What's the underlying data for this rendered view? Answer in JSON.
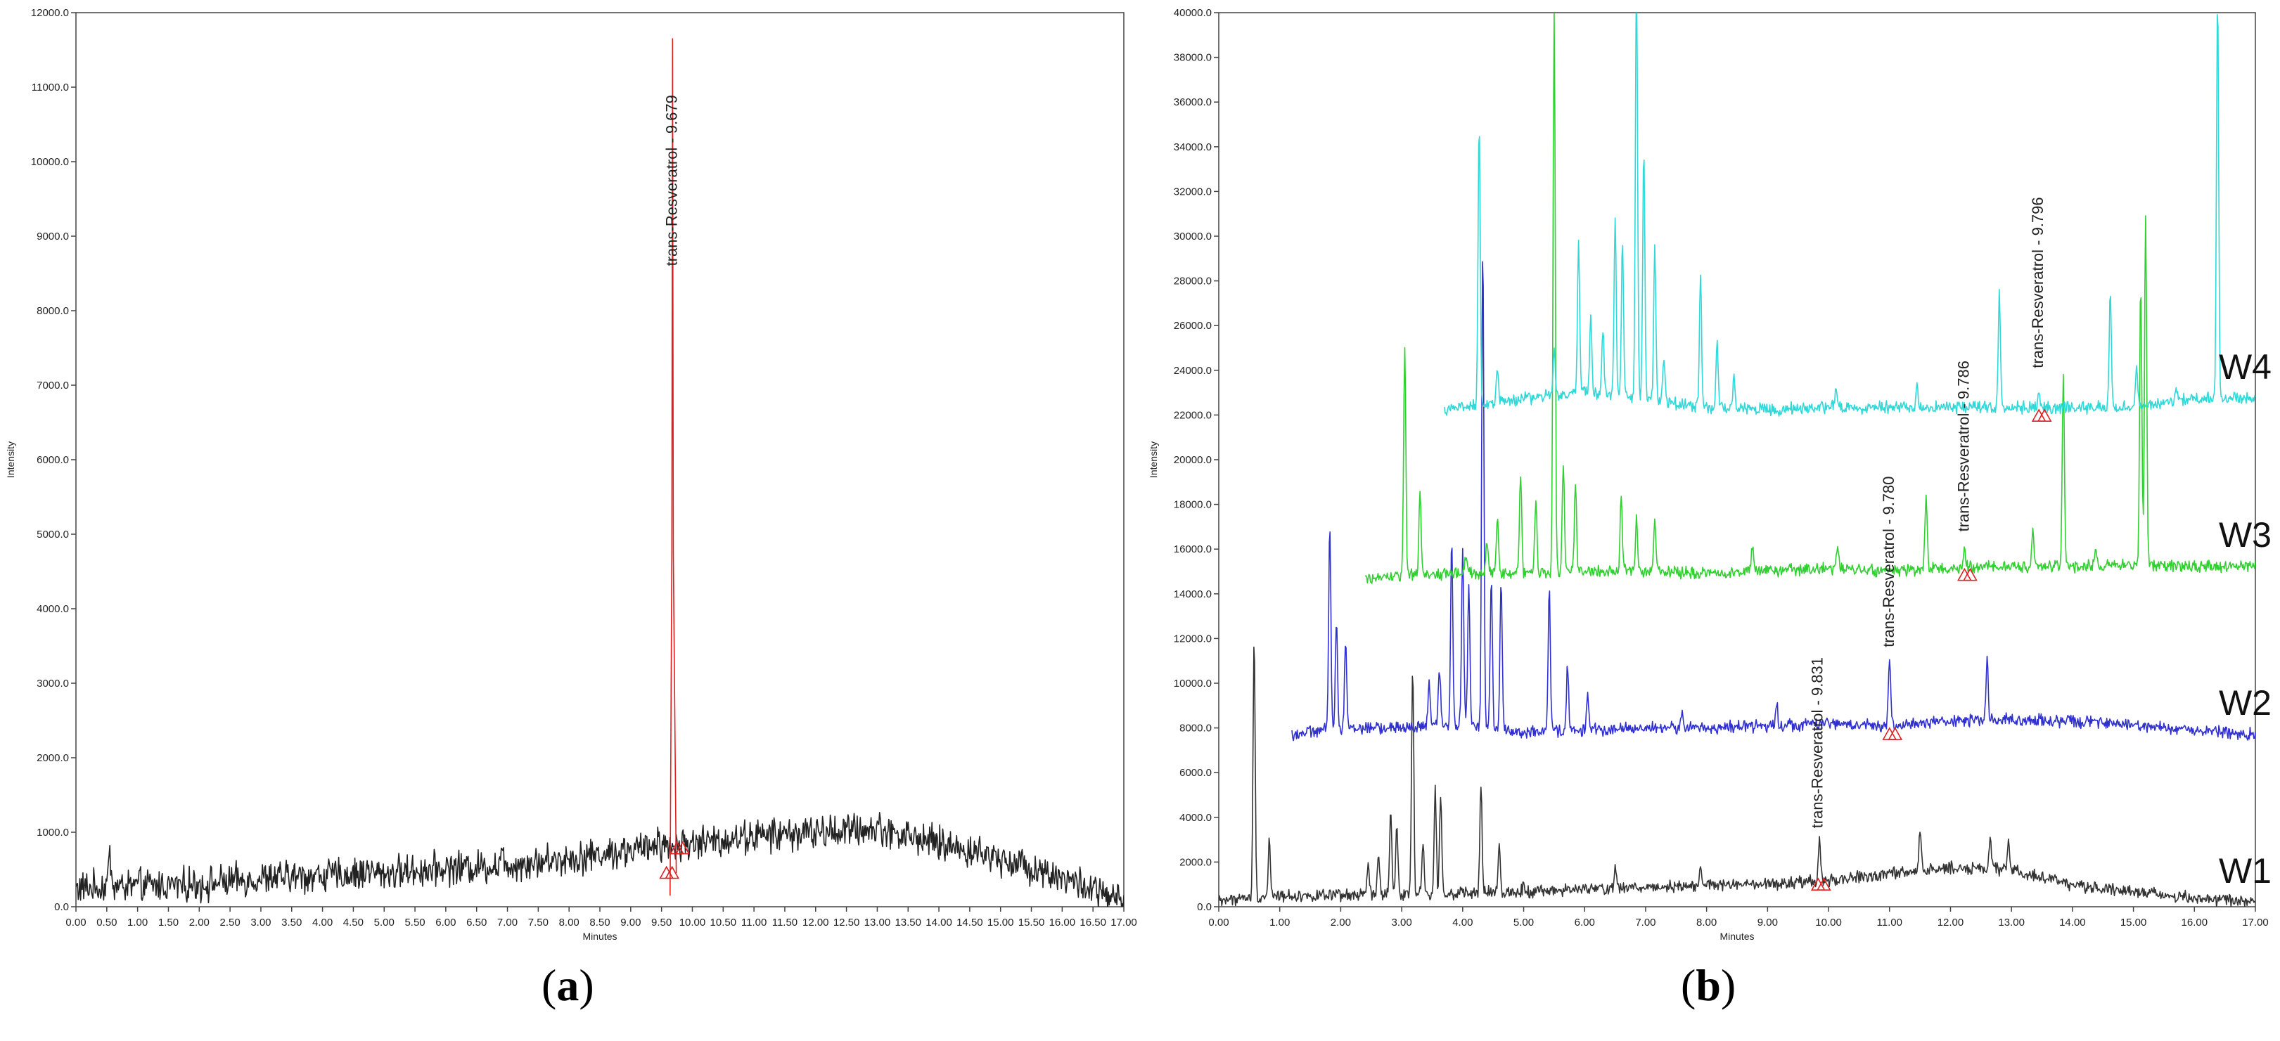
{
  "chart_data": [
    {
      "type": "line",
      "panel_label": "a",
      "xlabel": "Minutes",
      "ylabel": "Intensity",
      "xlim": [
        0,
        17
      ],
      "ylim": [
        0,
        12000
      ],
      "xticks": [
        "0.00",
        "0.50",
        "1.00",
        "1.50",
        "2.00",
        "2.50",
        "3.00",
        "3.50",
        "4.00",
        "4.50",
        "5.00",
        "5.50",
        "6.00",
        "6.50",
        "7.00",
        "7.50",
        "8.00",
        "8.50",
        "9.00",
        "9.50",
        "10.00",
        "10.50",
        "11.00",
        "11.50",
        "12.00",
        "12.50",
        "13.00",
        "13.50",
        "14.00",
        "14.50",
        "15.00",
        "15.50",
        "16.00",
        "16.50",
        "17.00"
      ],
      "yticks": [
        "0.0",
        "1000.0",
        "2000.0",
        "3000.0",
        "4000.0",
        "5000.0",
        "6000.0",
        "7000.0",
        "8000.0",
        "9000.0",
        "10000.0",
        "11000.0",
        "12000.0"
      ],
      "series": [
        {
          "color": "#222222",
          "baseline": [
            [
              0,
              250
            ],
            [
              1,
              280
            ],
            [
              2,
              300
            ],
            [
              3,
              380
            ],
            [
              4,
              420
            ],
            [
              5,
              450
            ],
            [
              6,
              520
            ],
            [
              7,
              560
            ],
            [
              8,
              650
            ],
            [
              9,
              760
            ],
            [
              10,
              850
            ],
            [
              11,
              950
            ],
            [
              12,
              1000
            ],
            [
              13,
              1050
            ],
            [
              14,
              850
            ],
            [
              15,
              650
            ],
            [
              16,
              400
            ],
            [
              17,
              50
            ]
          ],
          "peaks": [
            [
              0.55,
              400
            ],
            [
              4.75,
              120
            ],
            [
              6.9,
              150
            ],
            [
              9.45,
              200
            ]
          ]
        },
        {
          "color": "#e02020",
          "peaks": [
            [
              9.679,
              11500
            ]
          ]
        }
      ],
      "annotations": [
        {
          "text": "trans-Resveratrol - 9.679",
          "x": 9.679,
          "y": 8600
        }
      ],
      "markers": [
        [
          9.58,
          450
        ],
        [
          9.75,
          780
        ]
      ]
    },
    {
      "type": "line",
      "panel_label": "b",
      "xlabel": "Minutes",
      "ylabel": "Intensity",
      "xlim": [
        0,
        17
      ],
      "ylim": [
        0,
        41000
      ],
      "xticks": [
        "0.00",
        "1.00",
        "2.00",
        "3.00",
        "4.00",
        "5.00",
        "6.00",
        "7.00",
        "8.00",
        "9.00",
        "10.00",
        "11.00",
        "12.00",
        "13.00",
        "14.00",
        "15.00",
        "16.00",
        "17.00"
      ],
      "yticks": [
        "0.0",
        "2000.0",
        "4000.0",
        "6000.0",
        "8000.0",
        "10000.0",
        "12000.0",
        "14000.0",
        "16000.0",
        "18000.0",
        "20000.0",
        "22000.0",
        "24000.0",
        "26000.0",
        "28000.0",
        "30000.0",
        "32000.0",
        "34000.0",
        "36000.0",
        "38000.0",
        "40000.0"
      ],
      "series": [
        {
          "name": "W1",
          "color": "#333333",
          "start": 0.0,
          "baseline": [
            [
              0,
              300
            ],
            [
              1,
              500
            ],
            [
              2,
              500
            ],
            [
              3,
              600
            ],
            [
              4,
              600
            ],
            [
              5,
              700
            ],
            [
              6,
              800
            ],
            [
              7,
              900
            ],
            [
              8,
              1000
            ],
            [
              9,
              1000
            ],
            [
              10,
              1200
            ],
            [
              11,
              1500
            ],
            [
              12,
              1800
            ],
            [
              13,
              1700
            ],
            [
              14,
              1000
            ],
            [
              15,
              700
            ],
            [
              16,
              400
            ],
            [
              17,
              200
            ]
          ],
          "peaks": [
            [
              0.58,
              11700
            ],
            [
              0.83,
              2700
            ],
            [
              2.45,
              1500
            ],
            [
              2.62,
              1800
            ],
            [
              2.82,
              3700
            ],
            [
              2.92,
              3200
            ],
            [
              3.18,
              10500
            ],
            [
              3.35,
              2300
            ],
            [
              3.55,
              4700
            ],
            [
              3.64,
              4700
            ],
            [
              4.3,
              5000
            ],
            [
              4.6,
              2200
            ],
            [
              5.0,
              400
            ],
            [
              6.5,
              900
            ],
            [
              7.9,
              700
            ],
            [
              9.85,
              2000
            ],
            [
              11.5,
              1800
            ],
            [
              12.65,
              1500
            ],
            [
              12.95,
              1400
            ]
          ]
        },
        {
          "name": "W2",
          "color": "#3030d0",
          "start": 1.2,
          "baseline": [
            [
              1.2,
              7900
            ],
            [
              2,
              8200
            ],
            [
              3,
              8200
            ],
            [
              4,
              8400
            ],
            [
              5,
              8000
            ],
            [
              6,
              8100
            ],
            [
              7,
              8200
            ],
            [
              8,
              8200
            ],
            [
              9,
              8300
            ],
            [
              10,
              8400
            ],
            [
              11,
              8300
            ],
            [
              12,
              8500
            ],
            [
              13,
              8600
            ],
            [
              14,
              8500
            ],
            [
              15,
              8300
            ],
            [
              16,
              8100
            ],
            [
              17,
              7900
            ]
          ],
          "peaks": [
            [
              1.82,
              9500
            ],
            [
              1.93,
              5000
            ],
            [
              2.08,
              4000
            ],
            [
              3.45,
              2000
            ],
            [
              3.62,
              2600
            ],
            [
              3.82,
              8500
            ],
            [
              4.0,
              8000
            ],
            [
              4.1,
              6300
            ],
            [
              4.33,
              22000
            ],
            [
              4.47,
              7000
            ],
            [
              4.63,
              7000
            ],
            [
              5.42,
              6500
            ],
            [
              5.72,
              3000
            ],
            [
              6.05,
              1600
            ],
            [
              7.6,
              900
            ],
            [
              9.15,
              1200
            ],
            [
              11.0,
              3200
            ],
            [
              12.6,
              2800
            ]
          ]
        },
        {
          "name": "W3",
          "color": "#30d030",
          "start": 2.4,
          "baseline": [
            [
              2.4,
              15000
            ],
            [
              3,
              15200
            ],
            [
              4,
              15300
            ],
            [
              5,
              15300
            ],
            [
              6,
              15400
            ],
            [
              7,
              15400
            ],
            [
              8,
              15300
            ],
            [
              9,
              15400
            ],
            [
              10,
              15500
            ],
            [
              11,
              15400
            ],
            [
              12,
              15500
            ],
            [
              13,
              15600
            ],
            [
              14,
              15600
            ],
            [
              15,
              15700
            ],
            [
              16,
              15600
            ],
            [
              17,
              15600
            ]
          ],
          "peaks": [
            [
              3.05,
              10500
            ],
            [
              3.3,
              3700
            ],
            [
              4.05,
              800
            ],
            [
              4.4,
              1500
            ],
            [
              4.57,
              2500
            ],
            [
              4.95,
              4600
            ],
            [
              5.2,
              3300
            ],
            [
              5.5,
              26000
            ],
            [
              5.65,
              5000
            ],
            [
              5.85,
              4000
            ],
            [
              6.6,
              3500
            ],
            [
              6.85,
              2500
            ],
            [
              7.15,
              2500
            ],
            [
              8.75,
              1300
            ],
            [
              10.15,
              1200
            ],
            [
              11.6,
              3500
            ],
            [
              12.23,
              1000
            ],
            [
              13.35,
              1500
            ],
            [
              13.85,
              8700
            ],
            [
              14.38,
              900
            ],
            [
              15.12,
              13000
            ],
            [
              15.2,
              15800
            ]
          ]
        },
        {
          "name": "W4",
          "color": "#30d8d8",
          "start": 3.7,
          "baseline": [
            [
              3.7,
              22800
            ],
            [
              4,
              22900
            ],
            [
              5,
              23300
            ],
            [
              6,
              23600
            ],
            [
              7,
              23300
            ],
            [
              8,
              22900
            ],
            [
              9,
              22800
            ],
            [
              10,
              22900
            ],
            [
              11,
              22900
            ],
            [
              12,
              22900
            ],
            [
              13,
              22900
            ],
            [
              14,
              22900
            ],
            [
              15,
              22900
            ],
            [
              16,
              23300
            ],
            [
              17,
              23300
            ]
          ],
          "peaks": [
            [
              4.27,
              13000
            ],
            [
              4.57,
              1500
            ],
            [
              5.5,
              2000
            ],
            [
              5.9,
              7000
            ],
            [
              6.1,
              3500
            ],
            [
              6.3,
              3000
            ],
            [
              6.5,
              8000
            ],
            [
              6.62,
              7000
            ],
            [
              6.85,
              20000
            ],
            [
              6.97,
              11500
            ],
            [
              7.15,
              7000
            ],
            [
              7.3,
              2000
            ],
            [
              7.9,
              6000
            ],
            [
              8.17,
              3000
            ],
            [
              8.45,
              1500
            ],
            [
              10.12,
              700
            ],
            [
              11.45,
              1200
            ],
            [
              12.8,
              5200
            ],
            [
              13.45,
              600
            ],
            [
              14.62,
              5400
            ],
            [
              15.05,
              2000
            ],
            [
              15.7,
              800
            ],
            [
              16.38,
              18500
            ]
          ]
        }
      ],
      "annotations": [
        {
          "text": "trans-Resveratrol - 9.831",
          "x": 9.831,
          "y": 3600
        },
        {
          "text": "trans-Resveratrol - 9.780",
          "x": 11.0,
          "y": 11900
        },
        {
          "text": "trans-Resveratrol - 9.786",
          "x": 12.23,
          "y": 17200
        },
        {
          "text": "trans-Resveratrol - 9.796",
          "x": 13.45,
          "y": 24700
        }
      ],
      "markers": [
        [
          9.83,
          1000
        ],
        [
          11.0,
          7900
        ],
        [
          12.23,
          15200
        ],
        [
          13.45,
          22500
        ]
      ],
      "trace_labels": [
        {
          "text": "W1",
          "x": 16.4,
          "y": 1100
        },
        {
          "text": "W2",
          "x": 16.4,
          "y": 8800
        },
        {
          "text": "W3",
          "x": 16.4,
          "y": 16500
        },
        {
          "text": "W4",
          "x": 16.4,
          "y": 24200
        }
      ]
    }
  ],
  "captions": {
    "a_open": "(",
    "a_letter": "a",
    "a_close": ")",
    "b_open": "(",
    "b_letter": "b",
    "b_close": ")"
  }
}
